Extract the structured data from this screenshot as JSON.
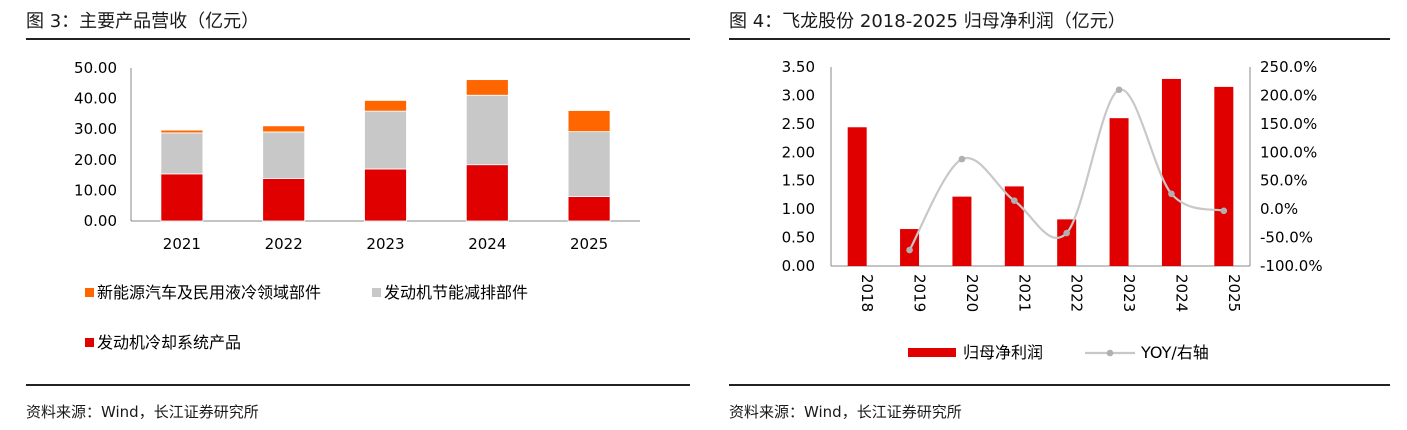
{
  "figure3": {
    "title": "图 3：主要产品营收（亿元）",
    "source": "资料来源：Wind，长江证券研究所"
  },
  "figure4": {
    "title": "图 4：飞龙股份 2018-2025 归母净利润（亿元）",
    "source": "资料来源：Wind，长江证券研究所"
  },
  "chart_data": [
    {
      "type": "bar",
      "stacked": true,
      "categories": [
        "2021",
        "2022",
        "2023",
        "2024",
        "2025"
      ],
      "yticks": [
        "0.00",
        "10.00",
        "20.00",
        "30.00",
        "40.00",
        "50.00"
      ],
      "ylim": [
        0,
        50
      ],
      "grid": false,
      "legend_position": "bottom",
      "series": [
        {
          "name": "发动机冷却系统产品",
          "color": "#e00000",
          "values": [
            15.4,
            13.9,
            17.0,
            18.4,
            8.0
          ]
        },
        {
          "name": "发动机节能减排部件",
          "color": "#c8c8c8",
          "values": [
            13.4,
            15.2,
            18.9,
            22.7,
            21.2
          ]
        },
        {
          "name": "新能源汽车及民用液冷领域部件",
          "color": "#ff6600",
          "values": [
            0.9,
            2.0,
            3.5,
            5.1,
            6.9
          ]
        }
      ],
      "legend_order": [
        2,
        1,
        0
      ]
    },
    {
      "type": "bar",
      "categories": [
        "2018",
        "2019",
        "2020",
        "2021",
        "2022",
        "2023",
        "2024",
        "2025"
      ],
      "yticks": [
        "0.00",
        "0.50",
        "1.00",
        "1.50",
        "2.00",
        "2.50",
        "3.00",
        "3.50"
      ],
      "ylim": [
        0,
        3.5
      ],
      "y2ticks": [
        "-100.0%",
        "-50.0%",
        "0.0%",
        "50.0%",
        "100.0%",
        "150.0%",
        "200.0%",
        "250.0%"
      ],
      "y2lim": [
        -100,
        250
      ],
      "grid": false,
      "legend_position": "bottom",
      "series": [
        {
          "name": "归母净利润",
          "type": "bar",
          "axis": "left",
          "color": "#e00000",
          "values": [
            2.44,
            0.65,
            1.22,
            1.4,
            0.82,
            2.6,
            3.29,
            3.15
          ]
        },
        {
          "name": "YOY/右轴",
          "type": "line",
          "axis": "right",
          "color": "#c8c8c8",
          "values": [
            null,
            -72,
            88,
            15,
            -42,
            210,
            27,
            -3
          ]
        }
      ]
    }
  ]
}
